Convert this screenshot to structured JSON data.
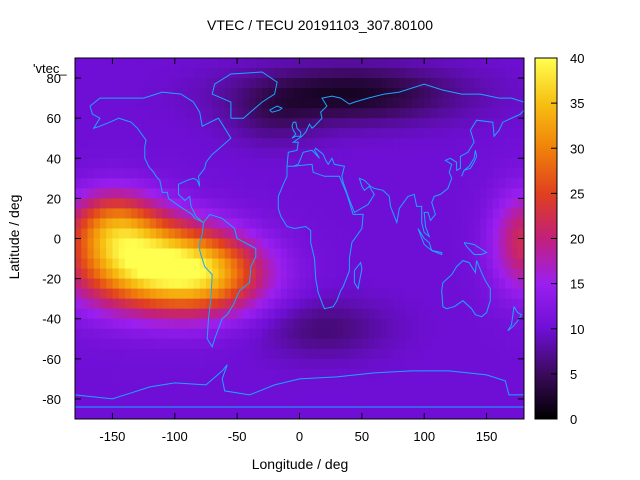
{
  "title": "VTEC / TECU 20191103_307.80100",
  "key_label": "'vtec_",
  "xlabel": "Longitude / deg",
  "ylabel": "Latitude / deg",
  "colors": {
    "scale": [
      "#000000",
      "#3b0a5c",
      "#6f0fd6",
      "#9b1ff0",
      "#c2207a",
      "#e0401e",
      "#f0820a",
      "#f7c012",
      "#ffff50"
    ],
    "coast": "#1aa7ff"
  },
  "chart_data": {
    "type": "heatmap",
    "title": "VTEC / TECU 20191103_307.80100",
    "xlabel": "Longitude / deg",
    "ylabel": "Latitude / deg",
    "xlim": [
      -180,
      180
    ],
    "ylim": [
      -90,
      90
    ],
    "x_ticks": [
      -150,
      -100,
      -50,
      0,
      50,
      100,
      150
    ],
    "y_ticks": [
      -80,
      -60,
      -40,
      -20,
      0,
      20,
      40,
      60,
      80
    ],
    "colorbar": {
      "range": [
        0,
        40
      ],
      "ticks": [
        0,
        5,
        10,
        15,
        20,
        25,
        30,
        35,
        40
      ]
    },
    "legend": "'vtec_",
    "background_vtec": 10,
    "features": [
      {
        "lon": -130,
        "lat": -12,
        "value": 24,
        "sigma_lon": 40,
        "sigma_lat": 16
      },
      {
        "lon": -75,
        "lat": -18,
        "value": 20,
        "sigma_lon": 35,
        "sigma_lat": 14
      },
      {
        "lon": -150,
        "lat": 8,
        "value": 13,
        "sigma_lon": 25,
        "sigma_lat": 12
      },
      {
        "lon": 180,
        "lat": -2,
        "value": 12,
        "sigma_lon": 18,
        "sigma_lat": 18
      },
      {
        "lon": 40,
        "lat": 72,
        "value": -8,
        "sigma_lon": 60,
        "sigma_lat": 10
      },
      {
        "lon": 20,
        "lat": -45,
        "value": -4,
        "sigma_lon": 35,
        "sigma_lat": 10
      },
      {
        "lon": -20,
        "lat": 60,
        "value": -3,
        "sigma_lon": 25,
        "sigma_lat": 10
      }
    ]
  }
}
